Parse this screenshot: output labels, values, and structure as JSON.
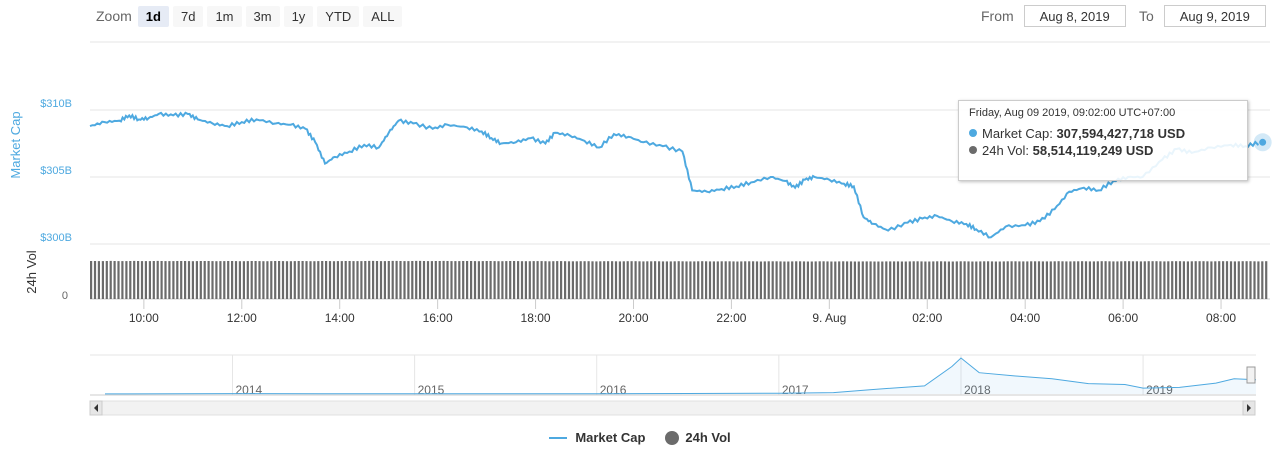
{
  "toolbar": {
    "zoom_label": "Zoom",
    "buttons": [
      "1d",
      "7d",
      "1m",
      "3m",
      "1y",
      "YTD",
      "ALL"
    ],
    "active": "1d",
    "from_label": "From",
    "from_value": "Aug 8, 2019",
    "to_label": "To",
    "to_value": "Aug 9, 2019"
  },
  "tooltip": {
    "header": "Friday, Aug 09 2019, 09:02:00 UTC+07:00",
    "market_cap_label": "Market Cap:",
    "market_cap_value": "307,594,427,718 USD",
    "volume_label": "24h Vol:",
    "volume_value": "58,514,119,249 USD"
  },
  "legend": {
    "market_cap": "Market Cap",
    "volume": "24h Vol"
  },
  "colors": {
    "line": "#4ea9e0",
    "volume": "#6b6b6b",
    "accent": "#e6ebf5"
  },
  "chart_data": {
    "type": "line",
    "title": "",
    "ylabel": "Market Cap",
    "y2label": "24h Vol",
    "yticks": [
      "$310B",
      "$305B",
      "$300B"
    ],
    "yticks_values": [
      310,
      305,
      300
    ],
    "ylim": [
      300,
      312
    ],
    "vol_yticks": [
      "0"
    ],
    "xticks": [
      "10:00",
      "12:00",
      "14:00",
      "16:00",
      "18:00",
      "20:00",
      "22:00",
      "9. Aug",
      "02:00",
      "04:00",
      "06:00",
      "08:00"
    ],
    "xticks_hours": [
      10,
      12,
      14,
      16,
      18,
      20,
      22,
      24,
      26,
      28,
      30,
      32
    ],
    "xlim_hours": [
      8.9,
      33.0
    ],
    "market_cap_series": [
      [
        8.9,
        308.8
      ],
      [
        9.2,
        309.1
      ],
      [
        9.5,
        309.2
      ],
      [
        9.7,
        309.6
      ],
      [
        9.9,
        309.3
      ],
      [
        10.1,
        309.4
      ],
      [
        10.3,
        309.7
      ],
      [
        10.6,
        309.6
      ],
      [
        10.9,
        309.7
      ],
      [
        11.1,
        309.3
      ],
      [
        11.4,
        309.0
      ],
      [
        11.7,
        308.8
      ],
      [
        12.0,
        309.1
      ],
      [
        12.3,
        309.3
      ],
      [
        12.7,
        309.0
      ],
      [
        13.0,
        308.9
      ],
      [
        13.3,
        308.6
      ],
      [
        13.5,
        307.6
      ],
      [
        13.7,
        306.0
      ],
      [
        13.9,
        306.5
      ],
      [
        14.2,
        306.9
      ],
      [
        14.5,
        307.4
      ],
      [
        14.8,
        307.2
      ],
      [
        15.0,
        308.3
      ],
      [
        15.2,
        309.2
      ],
      [
        15.5,
        309.0
      ],
      [
        15.9,
        308.6
      ],
      [
        16.2,
        308.9
      ],
      [
        16.6,
        308.7
      ],
      [
        16.9,
        308.4
      ],
      [
        17.1,
        307.9
      ],
      [
        17.3,
        307.5
      ],
      [
        17.6,
        307.6
      ],
      [
        17.9,
        307.9
      ],
      [
        18.2,
        307.5
      ],
      [
        18.4,
        308.3
      ],
      [
        18.7,
        308.1
      ],
      [
        19.0,
        307.7
      ],
      [
        19.3,
        307.2
      ],
      [
        19.6,
        308.2
      ],
      [
        19.9,
        308.0
      ],
      [
        20.2,
        307.6
      ],
      [
        20.6,
        307.3
      ],
      [
        21.0,
        306.9
      ],
      [
        21.2,
        304.0
      ],
      [
        21.5,
        303.9
      ],
      [
        21.8,
        304.1
      ],
      [
        22.1,
        304.3
      ],
      [
        22.4,
        304.6
      ],
      [
        22.8,
        305.0
      ],
      [
        23.1,
        304.7
      ],
      [
        23.3,
        304.2
      ],
      [
        23.5,
        304.8
      ],
      [
        23.7,
        305.0
      ],
      [
        24.0,
        304.8
      ],
      [
        24.3,
        304.5
      ],
      [
        24.5,
        304.3
      ],
      [
        24.7,
        302.0
      ],
      [
        24.9,
        301.5
      ],
      [
        25.2,
        301.0
      ],
      [
        25.6,
        301.6
      ],
      [
        25.9,
        301.9
      ],
      [
        26.2,
        302.1
      ],
      [
        26.5,
        301.7
      ],
      [
        26.8,
        301.5
      ],
      [
        27.0,
        301.1
      ],
      [
        27.3,
        300.5
      ],
      [
        27.6,
        301.3
      ],
      [
        28.0,
        301.4
      ],
      [
        28.3,
        301.7
      ],
      [
        28.6,
        302.6
      ],
      [
        28.9,
        303.9
      ],
      [
        29.2,
        304.2
      ],
      [
        29.5,
        304.0
      ],
      [
        29.8,
        304.7
      ],
      [
        30.1,
        305.0
      ],
      [
        30.4,
        305.0
      ],
      [
        30.8,
        306.3
      ],
      [
        31.1,
        307.1
      ],
      [
        31.4,
        306.8
      ],
      [
        31.8,
        307.2
      ],
      [
        32.2,
        307.4
      ],
      [
        32.5,
        307.3
      ],
      [
        32.8,
        307.59
      ]
    ],
    "volume_series_approx": [
      [
        8.9,
        58.9
      ],
      [
        11.0,
        58.8
      ],
      [
        13.0,
        58.7
      ],
      [
        15.0,
        58.9
      ],
      [
        17.0,
        58.8
      ],
      [
        19.0,
        58.5
      ],
      [
        21.0,
        58.4
      ],
      [
        23.0,
        58.3
      ],
      [
        25.0,
        58.2
      ],
      [
        27.0,
        58.3
      ],
      [
        29.0,
        58.4
      ],
      [
        31.0,
        58.5
      ],
      [
        32.8,
        58.5
      ]
    ],
    "navigator": {
      "xticks": [
        "2014",
        "2015",
        "2016",
        "2017",
        "2018",
        "2019"
      ],
      "xticks_years": [
        2014,
        2015,
        2016,
        2017,
        2018,
        2019
      ],
      "xlim_years": [
        2013.3,
        2019.62
      ],
      "series": [
        [
          2013.3,
          2
        ],
        [
          2014.0,
          8
        ],
        [
          2014.5,
          7
        ],
        [
          2015.0,
          4
        ],
        [
          2015.5,
          4
        ],
        [
          2016.0,
          6
        ],
        [
          2016.5,
          10
        ],
        [
          2017.0,
          17
        ],
        [
          2017.3,
          30
        ],
        [
          2017.5,
          90
        ],
        [
          2017.8,
          170
        ],
        [
          2017.95,
          580
        ],
        [
          2018.0,
          760
        ],
        [
          2018.1,
          450
        ],
        [
          2018.3,
          380
        ],
        [
          2018.5,
          320
        ],
        [
          2018.7,
          220
        ],
        [
          2018.9,
          200
        ],
        [
          2019.0,
          125
        ],
        [
          2019.2,
          140
        ],
        [
          2019.4,
          230
        ],
        [
          2019.5,
          320
        ],
        [
          2019.62,
          300
        ]
      ]
    }
  }
}
